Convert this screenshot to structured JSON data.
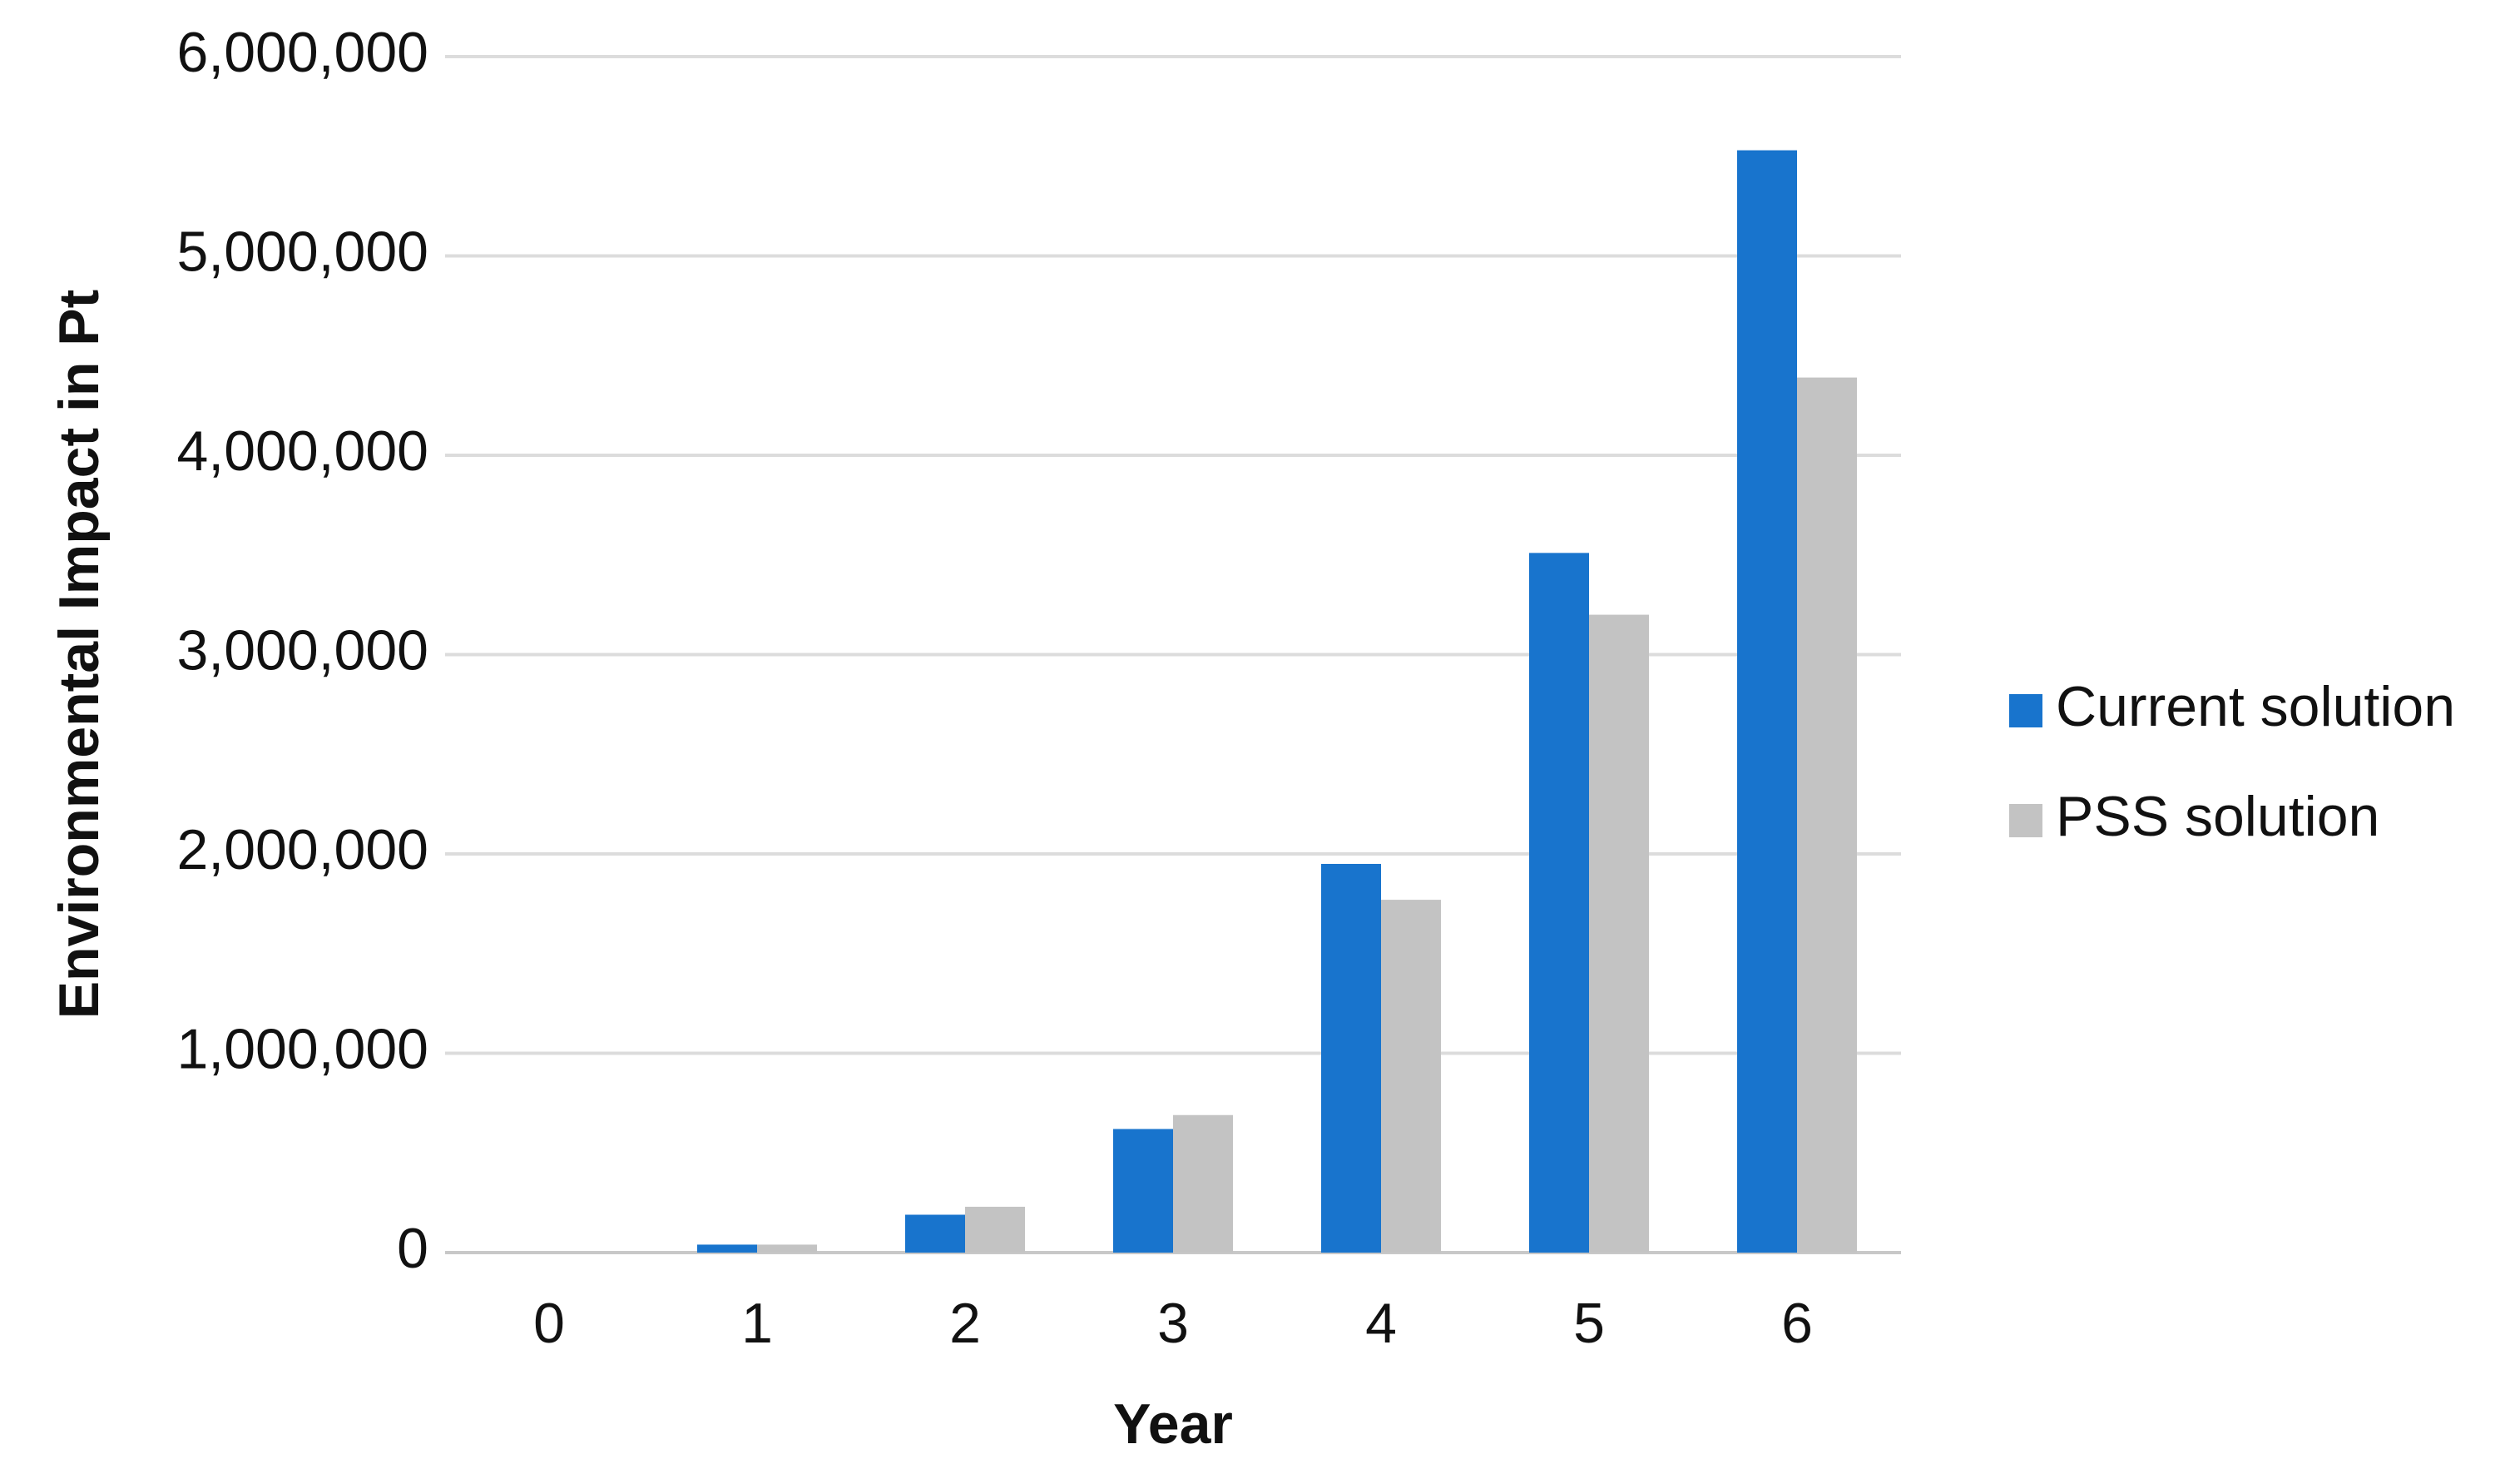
{
  "chart_data": {
    "type": "bar",
    "x_label": "Year",
    "y_label": "Environmental Impact in Pt",
    "categories": [
      "0",
      "1",
      "2",
      "3",
      "4",
      "5",
      "6"
    ],
    "series": [
      {
        "name": "Current solution",
        "color": "#1874cd",
        "values": [
          0,
          40000,
          190000,
          620000,
          1950000,
          3510000,
          5530000
        ]
      },
      {
        "name": "PSS solution",
        "color": "#c3c3c3",
        "values": [
          0,
          40000,
          230000,
          690000,
          1770000,
          3200000,
          4390000
        ]
      }
    ],
    "ylim": [
      0,
      6000000
    ],
    "yticks": [
      0,
      {
        "value": 1000000,
        "label": "1,000,000"
      },
      {
        "value": 2000000,
        "label": "2,000,000"
      },
      {
        "value": 3000000,
        "label": "3,000,000"
      },
      {
        "value": 4000000,
        "label": "4,000,000"
      },
      {
        "value": 5000000,
        "label": "5,000,000"
      },
      {
        "value": 6000000,
        "label": "6,000,000"
      }
    ],
    "grid": true,
    "legend": "right"
  }
}
